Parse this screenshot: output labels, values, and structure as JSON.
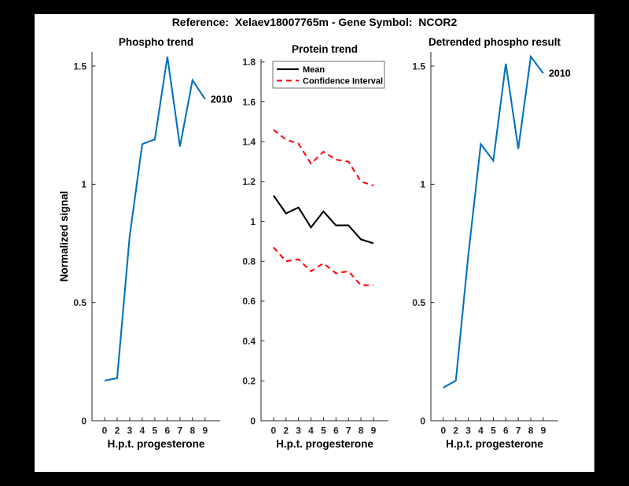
{
  "figure": {
    "title": "Reference:  Xelaev18007765m - Gene Symbol:  NCOR2",
    "background_color": "#000000",
    "canvas_color": "#ffffff"
  },
  "colors": {
    "blue_series": "#0072BD",
    "red_dashed": "#F80C0C",
    "mean_black": "#000000",
    "axis": "#262626"
  },
  "chart_data": [
    {
      "name": "phospho-trend",
      "type": "line",
      "title": "Phospho trend",
      "xlabel": "H.p.t. progesterone",
      "ylabel": "Normalized signal",
      "categories": [
        "0",
        "2",
        "3",
        "4",
        "5",
        "6",
        "7",
        "8",
        "9"
      ],
      "yticks": [
        0,
        0.5,
        1,
        1.5
      ],
      "ylim": [
        0,
        1.56
      ],
      "grid": false,
      "legend": null,
      "end_label": "2010",
      "series": [
        {
          "name": "2010",
          "color": "#0072BD",
          "dash": "solid",
          "values": [
            0.17,
            0.18,
            0.78,
            1.17,
            1.19,
            1.54,
            1.16,
            1.44,
            1.36
          ]
        }
      ]
    },
    {
      "name": "protein-trend",
      "type": "line",
      "title": "Protein trend",
      "xlabel": "H.p.t. progesterone",
      "ylabel": "",
      "categories": [
        "0",
        "2",
        "3",
        "4",
        "5",
        "6",
        "7",
        "8",
        "9"
      ],
      "yticks": [
        0,
        0.2,
        0.4,
        0.6,
        0.8,
        1,
        1.2,
        1.4,
        1.6,
        1.8
      ],
      "ylim": [
        0,
        1.815
      ],
      "grid": false,
      "legend": {
        "position": "top-left",
        "entries": [
          {
            "label": "Mean",
            "color": "#000000",
            "dash": "solid"
          },
          {
            "label": "Confidence Interval",
            "color": "#F80C0C",
            "dash": "dashed"
          }
        ]
      },
      "end_label": null,
      "series": [
        {
          "name": "Mean",
          "color": "#000000",
          "dash": "solid",
          "values": [
            1.13,
            1.04,
            1.07,
            0.97,
            1.05,
            0.98,
            0.98,
            0.91,
            0.89
          ]
        },
        {
          "name": "Confidence Interval upper",
          "color": "#F80C0C",
          "dash": "dashed",
          "values": [
            1.46,
            1.41,
            1.39,
            1.29,
            1.35,
            1.31,
            1.3,
            1.2,
            1.18
          ]
        },
        {
          "name": "Confidence Interval lower",
          "color": "#F80C0C",
          "dash": "dashed",
          "values": [
            0.87,
            0.8,
            0.81,
            0.75,
            0.79,
            0.74,
            0.75,
            0.68,
            0.68
          ]
        }
      ]
    },
    {
      "name": "detrended-phospho-result",
      "type": "line",
      "title": "Detrended phospho result",
      "xlabel": "H.p.t. progesterone",
      "ylabel": "",
      "categories": [
        "0",
        "2",
        "3",
        "4",
        "5",
        "6",
        "7",
        "8",
        "9"
      ],
      "yticks": [
        0,
        0.5,
        1,
        1.5
      ],
      "ylim": [
        0,
        1.56
      ],
      "grid": false,
      "legend": null,
      "end_label": "2010",
      "series": [
        {
          "name": "2010",
          "color": "#0072BD",
          "dash": "solid",
          "values": [
            0.14,
            0.17,
            0.7,
            1.17,
            1.1,
            1.51,
            1.15,
            1.54,
            1.47
          ]
        }
      ]
    }
  ]
}
